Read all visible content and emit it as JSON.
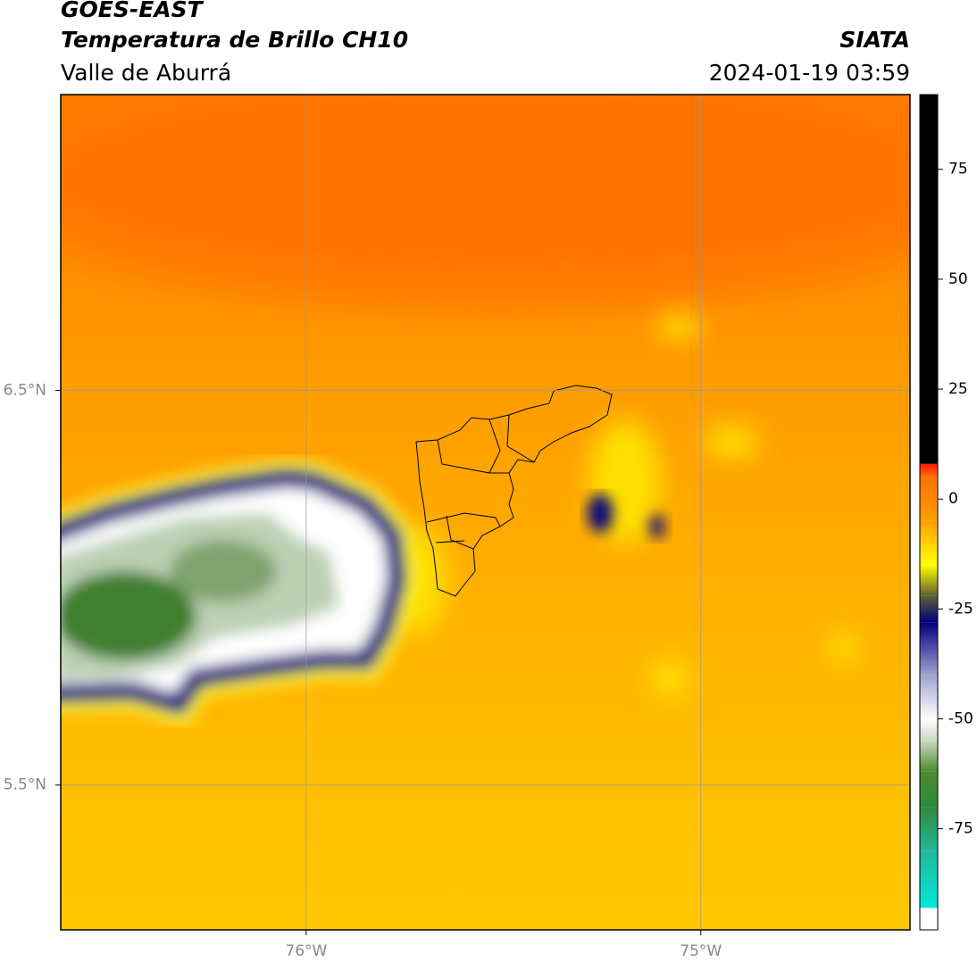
{
  "header": {
    "title": "GOES-EAST",
    "subtitle": "Temperatura de Brillo CH10",
    "source": "SIATA",
    "region": "Valle de Aburrá",
    "datetime": "2024-01-19 03:59"
  },
  "map": {
    "xlim": [
      -76.622,
      -74.47
    ],
    "ylim": [
      5.133,
      7.25
    ],
    "xticks": [
      {
        "value": -76,
        "label": "76°W"
      },
      {
        "value": -75,
        "label": "75°W"
      }
    ],
    "yticks": [
      {
        "value": 6.5,
        "label": "6.5°N"
      },
      {
        "value": 5.5,
        "label": "5.5°N"
      }
    ],
    "grid": true
  },
  "colorbar": {
    "lim": [
      -98,
      92
    ],
    "ticks": [
      75,
      50,
      25,
      0,
      -25,
      -50,
      -75
    ],
    "stops": [
      {
        "value": -98,
        "color": "#ffffff"
      },
      {
        "value": -93,
        "color": "#ffffff"
      },
      {
        "value": -93,
        "color": "#00e8dc"
      },
      {
        "value": -80,
        "color": "#22b899"
      },
      {
        "value": -70,
        "color": "#2e8b3a"
      },
      {
        "value": -62,
        "color": "#4f8a30"
      },
      {
        "value": -55,
        "color": "#c8d8c0"
      },
      {
        "value": -50,
        "color": "#ffffff"
      },
      {
        "value": -40,
        "color": "#a0a0d0"
      },
      {
        "value": -28,
        "color": "#000080"
      },
      {
        "value": -22,
        "color": "#606030"
      },
      {
        "value": -15,
        "color": "#ffff00"
      },
      {
        "value": -5,
        "color": "#ffa000"
      },
      {
        "value": 5,
        "color": "#ff7000"
      },
      {
        "value": 8,
        "color": "#ff1800"
      },
      {
        "value": 8,
        "color": "#000000"
      },
      {
        "value": 92,
        "color": "#000000"
      }
    ]
  }
}
